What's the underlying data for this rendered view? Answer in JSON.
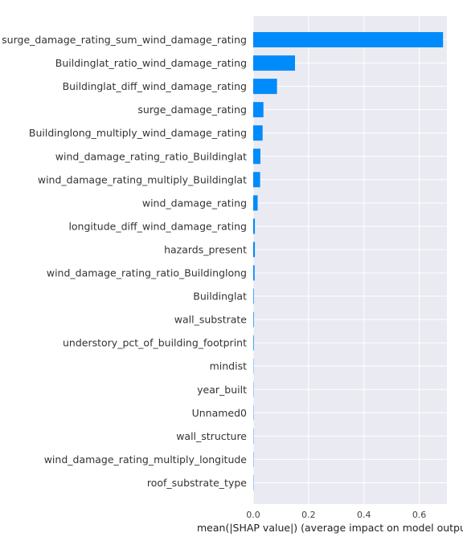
{
  "chart_data": {
    "type": "bar",
    "orientation": "horizontal",
    "xlabel": "mean(|SHAP value|) (average impact on model output magnitude)",
    "ylabel": "",
    "xlim": [
      0,
      0.7
    ],
    "xticks": [
      0.0,
      0.2,
      0.4,
      0.6
    ],
    "x_tick_labels": [
      "0.0",
      "0.2",
      "0.4",
      "0.6"
    ],
    "grid": true,
    "bar_color": "#008bfb",
    "background_color": "#eaeaf2",
    "categories": [
      "surge_damage_rating_sum_wind_damage_rating",
      "Buildinglat_ratio_wind_damage_rating",
      "Buildinglat_diff_wind_damage_rating",
      "surge_damage_rating",
      "Buildinglong_multiply_wind_damage_rating",
      "wind_damage_rating_ratio_Buildinglat",
      "wind_damage_rating_multiply_Buildinglat",
      "wind_damage_rating",
      "longitude_diff_wind_damage_rating",
      "hazards_present",
      "wind_damage_rating_ratio_Buildinglong",
      "Buildinglat",
      "wall_substrate",
      "understory_pct_of_building_footprint",
      "mindist",
      "year_built",
      "Unnamed0",
      "wall_structure",
      "wind_damage_rating_multiply_longitude",
      "roof_substrate_type"
    ],
    "values": [
      0.686,
      0.151,
      0.086,
      0.037,
      0.034,
      0.026,
      0.025,
      0.016,
      0.006,
      0.006,
      0.005,
      0.002,
      0.002,
      0.002,
      0.001,
      0.001,
      0.001,
      0.001,
      0.001,
      0.001
    ]
  }
}
